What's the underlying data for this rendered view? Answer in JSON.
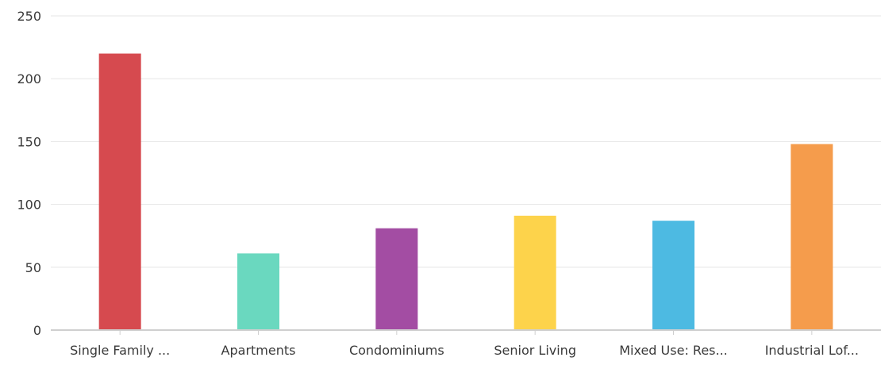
{
  "chart_data": {
    "type": "bar",
    "categories": [
      "Single Family ...",
      "Apartments",
      "Condominiums",
      "Senior Living",
      "Mixed Use: Res...",
      "Industrial Lof..."
    ],
    "values": [
      220,
      61,
      81,
      91,
      87,
      148
    ],
    "colors": [
      "#d64a4f",
      "#6ad8bf",
      "#a34da3",
      "#fdd34b",
      "#4dbae2",
      "#f59c4c"
    ],
    "ylim": [
      0,
      250
    ],
    "yticks": [
      "0",
      "50",
      "100",
      "150",
      "200",
      "250"
    ],
    "ytick_values": [
      0,
      50,
      100,
      150,
      200,
      250
    ],
    "grid": true
  }
}
